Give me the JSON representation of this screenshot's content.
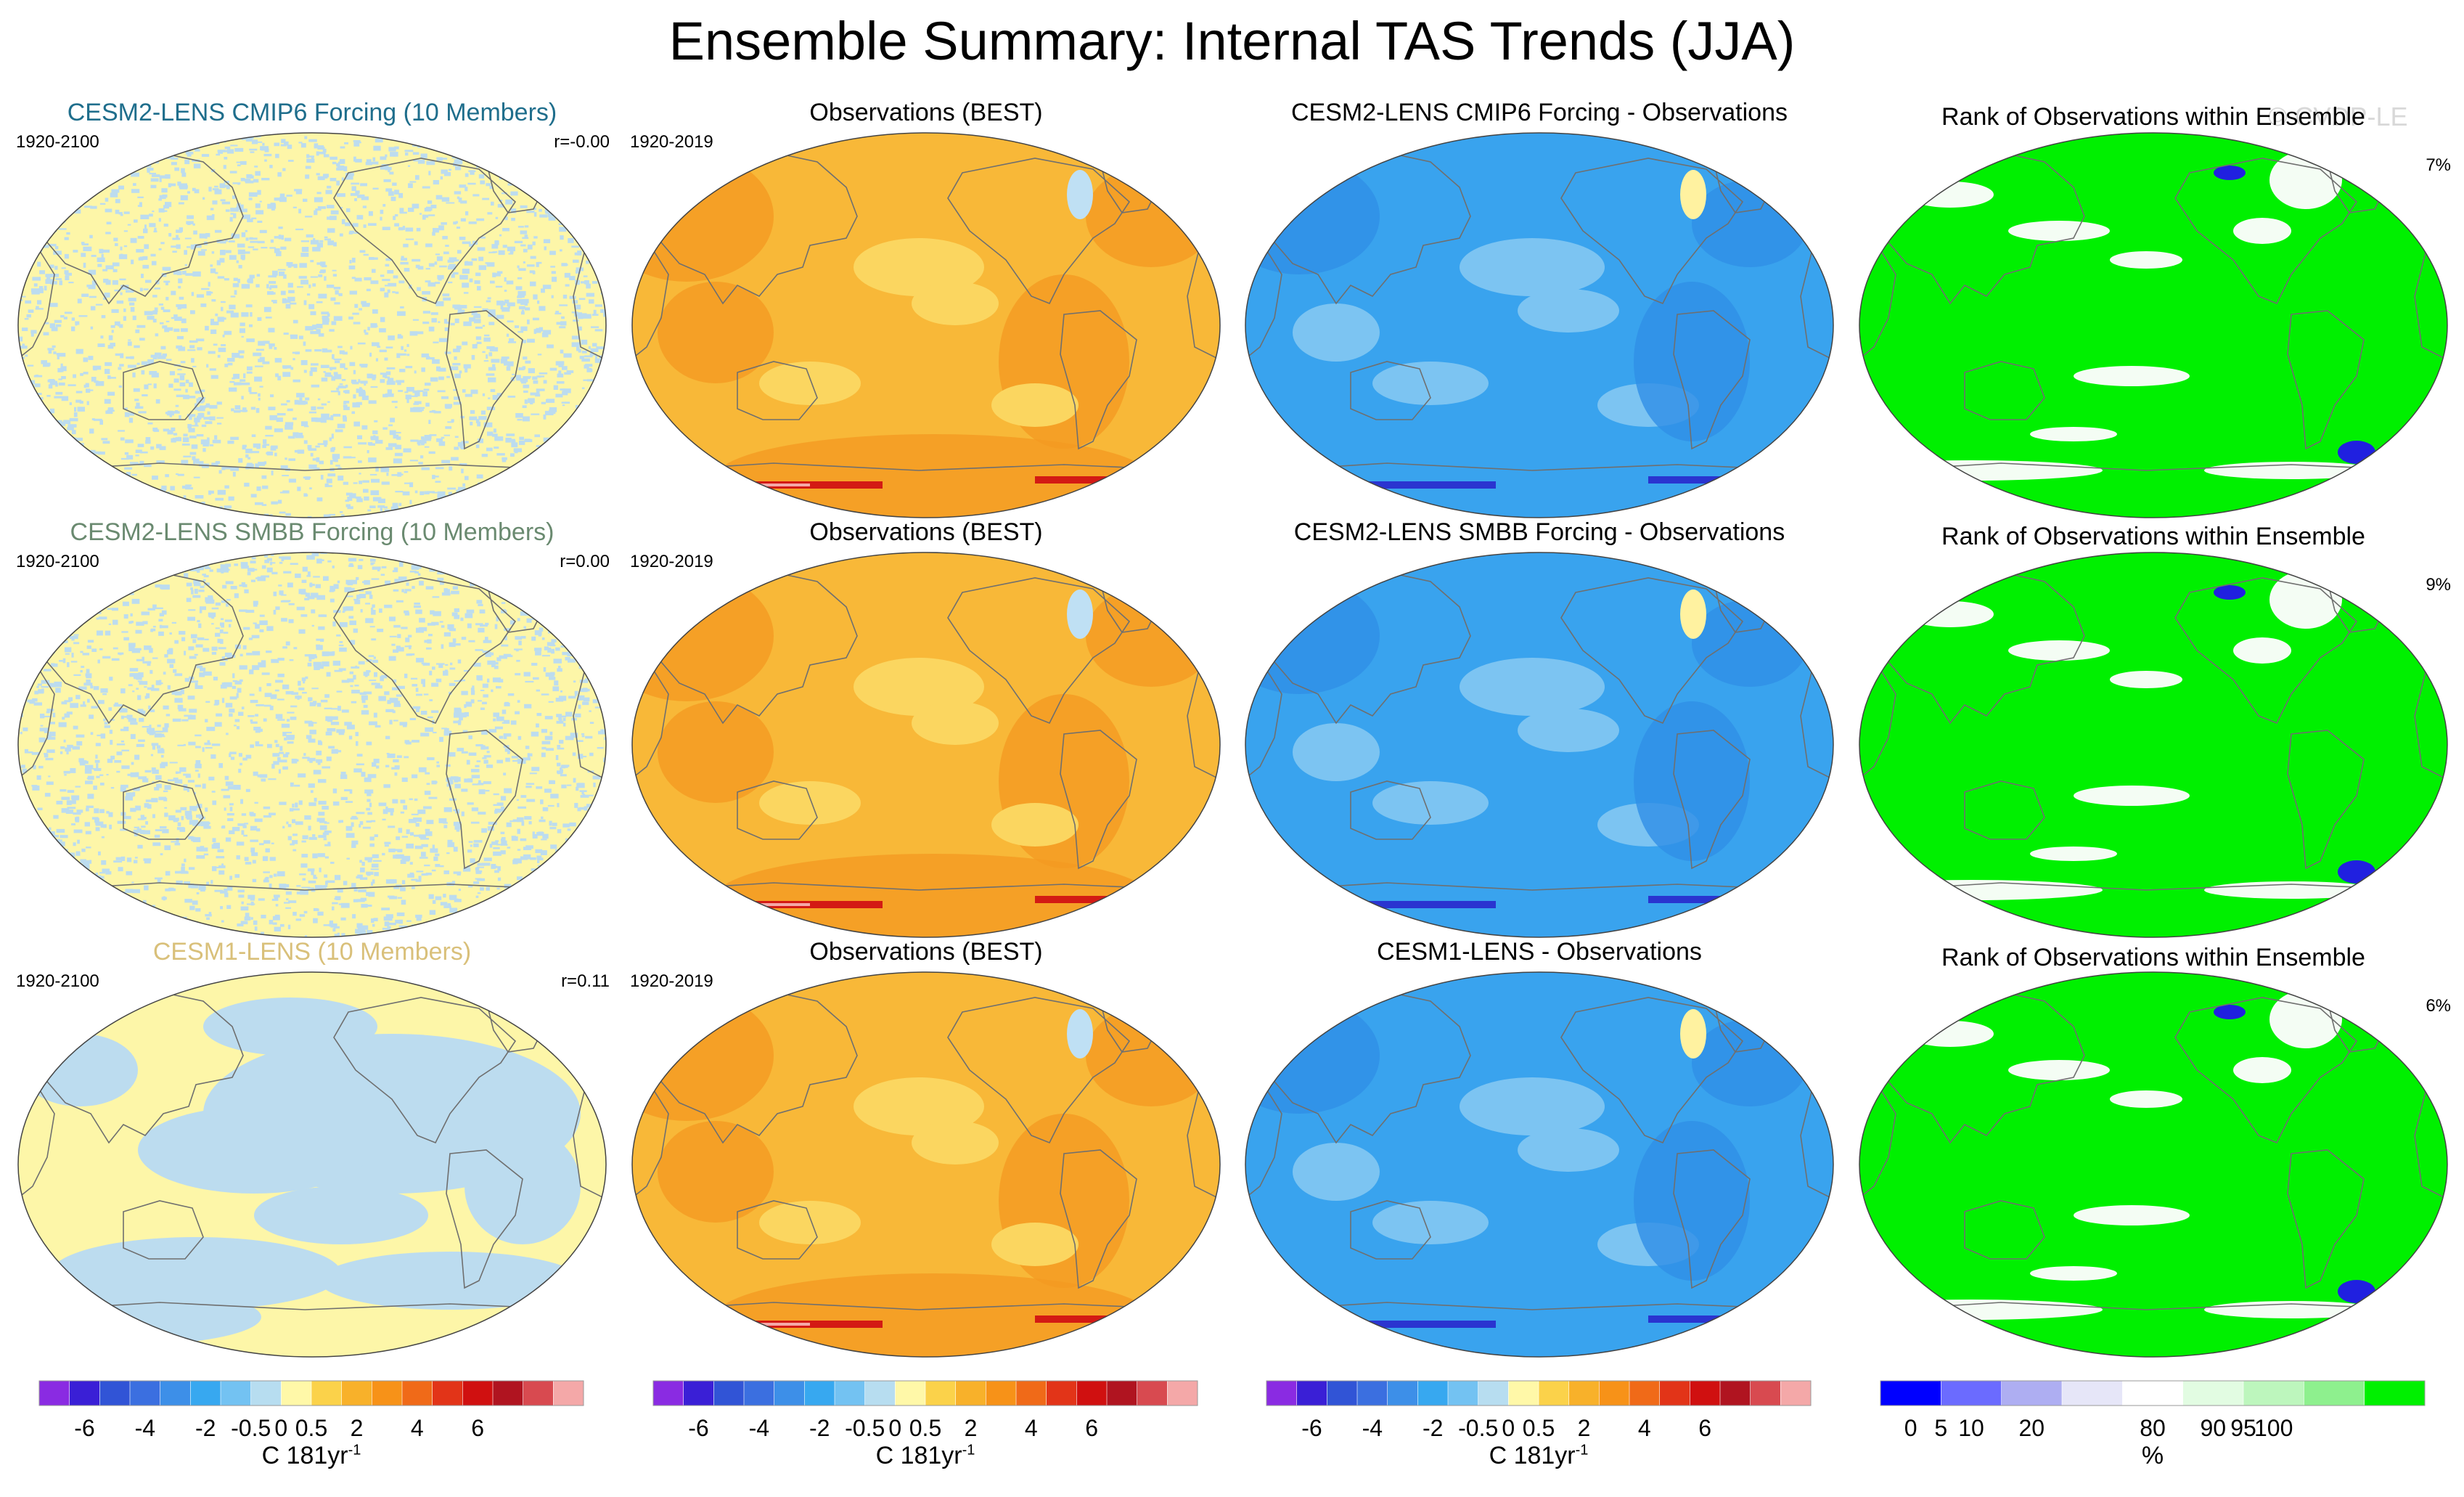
{
  "title": "Ensemble Summary: Internal TAS Trends (JJA)",
  "watermark": "© CVDP-LE",
  "colors": {
    "ens_cmip6": "#1f6e8c",
    "ens_smbb": "#6a8a70",
    "ens_cesm1": "#d9c07a",
    "ocean_blue": "#2b9ae8",
    "ocean_orange": "#f7a81e",
    "rank_green": "#00f000"
  },
  "rows": [
    {
      "ensemble": {
        "title": "CESM2-LENS CMIP6 Forcing (10 Members)",
        "period": "1920-2100",
        "corr": "r=-0.00",
        "style": "noise"
      },
      "obs": {
        "title": "Observations (BEST)",
        "period": "1920-2019"
      },
      "diff": {
        "title": "CESM2-LENS CMIP6 Forcing - Observations"
      },
      "rank": {
        "title": "Rank of Observations within Ensemble",
        "pct": "7%"
      }
    },
    {
      "ensemble": {
        "title": "CESM2-LENS SMBB Forcing (10 Members)",
        "period": "1920-2100",
        "corr": "r=0.00",
        "style": "noise"
      },
      "obs": {
        "title": "Observations (BEST)",
        "period": "1920-2019"
      },
      "diff": {
        "title": "CESM2-LENS SMBB Forcing - Observations"
      },
      "rank": {
        "title": "Rank of Observations within Ensemble",
        "pct": "9%"
      }
    },
    {
      "ensemble": {
        "title": "CESM1-LENS (10 Members)",
        "period": "1920-2100",
        "corr": "r=0.11",
        "style": "blobs"
      },
      "obs": {
        "title": "Observations (BEST)",
        "period": "1920-2019"
      },
      "diff": {
        "title": "CESM1-LENS - Observations"
      },
      "rank": {
        "title": "Rank of Observations within Ensemble",
        "pct": "6%"
      }
    }
  ],
  "chart_data": {
    "type": "heatmap",
    "projection": "Robinson (Pacific-centered)",
    "title": "Ensemble Summary: Internal TAS Trends (JJA)",
    "colorbars": [
      {
        "name": "trend",
        "unit_base": "C 181yr",
        "unit_exp": "-1",
        "colors": [
          "#8a2be2",
          "#3a1fd6",
          "#3154d6",
          "#3b6fe0",
          "#3d8fe8",
          "#37a8f0",
          "#73c2f2",
          "#b7ddf0",
          "#fff8a8",
          "#fbd24a",
          "#f8b12a",
          "#f79218",
          "#f06a18",
          "#e23418",
          "#d01010",
          "#b01420",
          "#d84a50",
          "#f4a8a8"
        ],
        "tick_labels": [
          "-6",
          "-4",
          "-2",
          "-0.5",
          "0",
          "0.5",
          "2",
          "4",
          "6"
        ],
        "tick_positions": [
          1.5,
          3.5,
          5.5,
          7,
          8,
          9,
          10.5,
          12.5,
          14.5
        ]
      },
      {
        "name": "rank",
        "unit_base": "%",
        "colors": [
          "#0000ff",
          "#6b6bff",
          "#aeaef2",
          "#e6e6f8",
          "#ffffff",
          "#e2fce2",
          "#bdf6bd",
          "#8ef08e",
          "#00f000"
        ],
        "tick_labels": [
          "0",
          "5",
          "10",
          "20",
          "80",
          "90",
          "95",
          "100"
        ],
        "tick_positions": [
          0.5,
          1,
          1.5,
          2.5,
          4.5,
          5.5,
          6,
          6.5
        ]
      }
    ]
  }
}
